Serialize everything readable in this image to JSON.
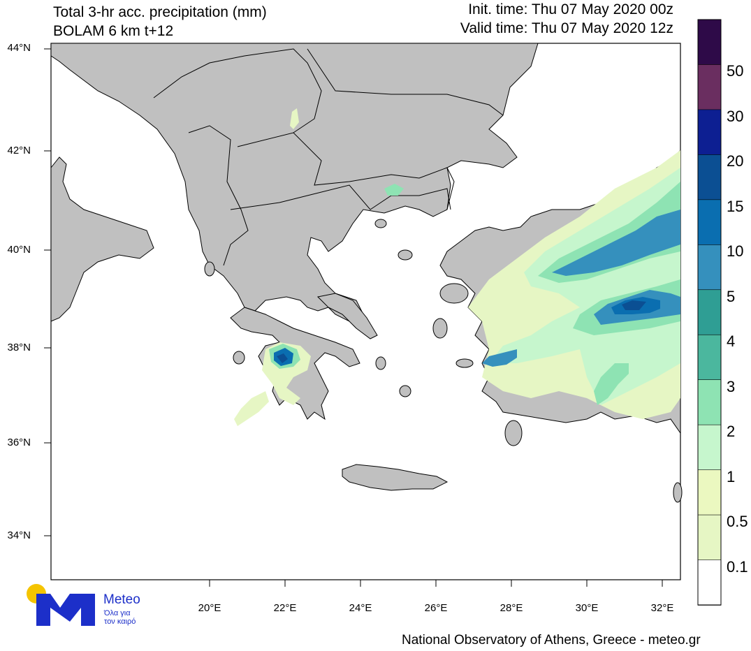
{
  "header": {
    "title_line1": "Total 3-hr acc. precipitation (mm)",
    "title_line2": "BOLAM 6 km t+12",
    "init_time": "Init. time: Thu 07 May 2020 00z",
    "valid_time": "Valid time: Thu 07 May 2020 12z"
  },
  "axes": {
    "lat_labels": [
      "44°N",
      "42°N",
      "40°N",
      "38°N",
      "36°N",
      "34°N"
    ],
    "lon_labels": [
      "20°E",
      "22°E",
      "24°E",
      "26°E",
      "28°E",
      "30°E",
      "32°E"
    ]
  },
  "colorbar": {
    "labels": [
      "50",
      "30",
      "20",
      "15",
      "10",
      "5",
      "4",
      "3",
      "2",
      "1",
      "0.5",
      "0.1"
    ],
    "colors": [
      "#2e0a48",
      "#6a2e60",
      "#0d1f92",
      "#0b4f93",
      "#0a6eb0",
      "#3590bd",
      "#2f9e94",
      "#4bb79e",
      "#8ee3b3",
      "#c6f6cd",
      "#ebf8c0",
      "#e6f6c4",
      "#ffffff"
    ]
  },
  "map_colors": {
    "land": "#c0c0c0",
    "sea": "#ffffff",
    "border": "#000000"
  },
  "logo": {
    "name": "Meteo",
    "tagline_line1": "Όλα για",
    "tagline_line2": "τον καιρό"
  },
  "footer": {
    "credit": "National Observatory of Athens, Greece - meteo.gr"
  }
}
